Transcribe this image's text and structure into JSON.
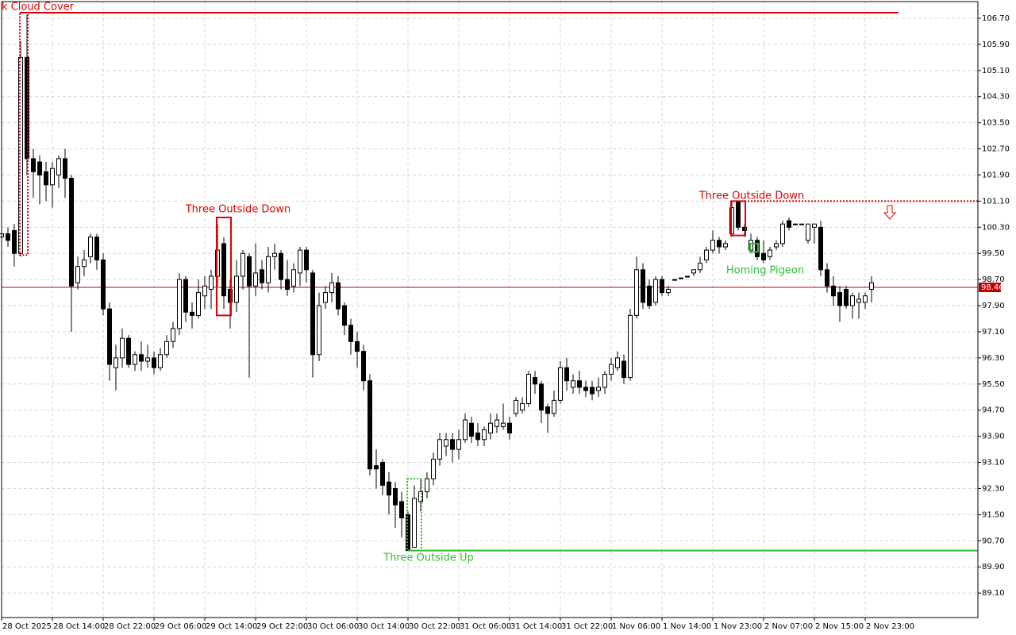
{
  "chart_data": {
    "type": "candlestick",
    "categories": [
      "28 Oct 2025",
      null,
      null,
      null,
      null,
      null,
      null,
      null,
      "28 Oct 14:00",
      null,
      null,
      null,
      null,
      null,
      null,
      null,
      "28 Oct 22:00",
      null,
      null,
      null,
      null,
      null,
      null,
      null,
      "29 Oct 06:00",
      null,
      null,
      null,
      null,
      null,
      null,
      null,
      "29 Oct 14:00",
      null,
      null,
      null,
      null,
      null,
      null,
      null,
      "29 Oct 22:00",
      null,
      null,
      null,
      null,
      null,
      null,
      null,
      "30 Oct 06:00",
      null,
      null,
      null,
      null,
      null,
      null,
      null,
      "30 Oct 14:00",
      null,
      null,
      null,
      null,
      null,
      null,
      null,
      "30 Oct 22:00",
      null,
      null,
      null,
      null,
      null,
      null,
      null,
      "31 Oct 06:00",
      null,
      null,
      null,
      null,
      null,
      null,
      null,
      "31 Oct 14:00",
      null,
      null,
      null,
      null,
      null,
      null,
      null,
      "31 Oct 22:00",
      null,
      null,
      null,
      null,
      null,
      null,
      null,
      "1 Nov 06:00",
      null,
      null,
      null,
      null,
      null,
      null,
      null,
      "1 Nov 14:00",
      null,
      null,
      null,
      null,
      null,
      null,
      null,
      "1 Nov 23:00",
      null,
      null,
      null,
      null,
      null,
      null,
      null,
      "2 Nov 07:00",
      null,
      null,
      null,
      null,
      null,
      null,
      null,
      "2 Nov 15:00",
      null,
      null,
      null,
      null,
      null,
      null,
      null,
      "2 Nov 23:00",
      null
    ],
    "open": [
      100.0,
      100.1,
      100.2,
      99.5,
      105.5,
      102.4,
      102.3,
      102.0,
      101.6,
      101.9,
      102.4,
      101.8,
      98.6,
      99.1,
      99.4,
      100.0,
      99.3,
      97.8,
      96.0,
      96.3,
      96.9,
      96.1,
      96.4,
      96.2,
      96.3,
      96.0,
      96.4,
      96.8,
      97.2,
      98.7,
      97.7,
      97.6,
      98.2,
      98.4,
      98.8,
      99.8,
      98.4,
      98.0,
      98.8,
      99.4,
      98.5,
      99.0,
      98.6,
      99.4,
      99.5,
      98.7,
      98.5,
      98.9,
      99.6,
      98.9,
      96.4,
      98.0,
      98.3,
      98.6,
      97.9,
      97.3,
      96.8,
      96.5,
      95.6,
      93.0,
      93.1,
      92.5,
      92.3,
      91.9,
      91.5,
      90.5,
      91.9,
      92.2,
      92.6,
      93.2,
      93.6,
      93.8,
      93.5,
      93.8,
      94.3,
      94.0,
      93.8,
      94.0,
      94.2,
      94.2,
      94.3,
      94.6,
      94.7,
      94.9,
      95.7,
      95.5,
      94.8,
      94.6,
      95.0,
      96.0,
      95.4,
      95.6,
      95.4,
      95.4,
      95.3,
      95.4,
      95.8,
      96.0,
      96.2,
      95.7,
      97.6,
      99.0,
      98.5,
      98.0,
      98.7,
      98.3,
      98.7,
      98.75,
      98.8,
      98.9,
      99.0,
      99.3,
      99.6,
      99.9,
      99.7,
      100.1,
      101.1,
      100.3,
      99.6,
      99.9,
      99.5,
      99.4,
      99.7,
      99.8,
      100.5,
      100.4,
      100.4,
      99.9,
      100.3,
      100.3,
      99.0,
      98.5,
      98.3,
      98.4,
      97.9,
      98.0,
      98.0,
      98.4
    ],
    "high": [
      100.3,
      100.3,
      100.4,
      106.0,
      106.8,
      102.7,
      102.5,
      102.3,
      102.3,
      102.5,
      102.7,
      101.9,
      99.4,
      99.6,
      100.1,
      100.1,
      99.5,
      98.0,
      96.7,
      97.2,
      97.0,
      96.5,
      96.8,
      96.7,
      96.5,
      96.6,
      97.0,
      97.4,
      98.9,
      98.8,
      98.0,
      98.7,
      98.8,
      99.0,
      100.4,
      100.0,
      98.7,
      99.3,
      99.6,
      99.5,
      99.8,
      99.3,
      99.7,
      99.8,
      99.6,
      99.3,
      99.2,
      99.7,
      99.7,
      99.0,
      98.3,
      98.5,
      98.9,
      98.8,
      98.0,
      97.5,
      97.1,
      96.7,
      95.8,
      93.5,
      93.2,
      92.8,
      92.5,
      92.2,
      91.6,
      92.4,
      92.6,
      92.8,
      93.4,
      94.0,
      94.0,
      94.0,
      94.1,
      94.6,
      94.5,
      94.3,
      94.2,
      94.6,
      94.6,
      94.9,
      94.5,
      95.1,
      95.1,
      95.9,
      95.9,
      95.6,
      94.9,
      95.3,
      96.2,
      96.3,
      95.8,
      95.9,
      95.6,
      95.6,
      95.7,
      95.9,
      96.3,
      96.5,
      96.4,
      97.8,
      99.4,
      99.2,
      98.7,
      98.8,
      98.8,
      98.5,
      98.7,
      98.75,
      98.8,
      99.0,
      99.4,
      99.7,
      100.2,
      100.0,
      99.9,
      101.1,
      101.1,
      100.4,
      100.1,
      100.0,
      99.9,
      99.7,
      99.9,
      100.5,
      100.6,
      100.4,
      100.4,
      100.4,
      100.4,
      100.5,
      99.2,
      98.8,
      98.5,
      98.5,
      98.3,
      98.3,
      98.3,
      98.8
    ],
    "low": [
      99.8,
      99.7,
      99.1,
      99.4,
      101.9,
      101.2,
      101.0,
      101.1,
      100.9,
      101.5,
      101.2,
      97.1,
      98.4,
      98.8,
      99.2,
      99.0,
      97.6,
      95.6,
      95.3,
      96.0,
      96.0,
      95.9,
      95.9,
      96.0,
      95.8,
      95.9,
      96.3,
      96.6,
      97.0,
      97.4,
      97.2,
      97.5,
      97.8,
      97.8,
      98.5,
      97.8,
      97.2,
      97.7,
      98.4,
      95.7,
      98.2,
      98.4,
      98.3,
      99.0,
      98.4,
      98.2,
      98.3,
      98.5,
      98.6,
      95.7,
      96.2,
      97.8,
      98.0,
      97.6,
      97.0,
      96.4,
      96.0,
      95.3,
      92.7,
      92.3,
      92.1,
      91.5,
      91.1,
      90.8,
      90.4,
      90.5,
      91.6,
      92.0,
      92.4,
      93.0,
      93.3,
      93.1,
      93.2,
      93.7,
      93.7,
      93.6,
      93.6,
      93.8,
      94.0,
      94.1,
      93.8,
      94.5,
      94.6,
      94.8,
      95.2,
      94.3,
      94.0,
      94.5,
      94.9,
      95.3,
      95.2,
      95.2,
      95.1,
      95.0,
      95.1,
      95.2,
      95.6,
      95.9,
      95.5,
      95.6,
      97.5,
      97.8,
      97.8,
      97.9,
      98.2,
      98.2,
      98.7,
      98.75,
      98.8,
      98.8,
      98.9,
      99.2,
      99.5,
      99.5,
      99.6,
      100.0,
      100.2,
      100.0,
      99.5,
      99.3,
      99.2,
      99.3,
      99.6,
      99.7,
      100.2,
      100.4,
      100.4,
      99.8,
      99.8,
      98.8,
      98.3,
      97.9,
      97.4,
      97.8,
      97.5,
      97.5,
      97.8,
      98.0
    ],
    "close": [
      100.1,
      99.9,
      99.5,
      105.5,
      102.4,
      102.0,
      101.9,
      101.6,
      102.1,
      102.4,
      101.8,
      98.5,
      99.1,
      99.3,
      100.0,
      99.3,
      97.8,
      96.1,
      96.3,
      96.9,
      96.1,
      96.4,
      96.2,
      96.3,
      96.0,
      96.4,
      96.8,
      97.2,
      98.7,
      97.7,
      97.6,
      98.3,
      98.5,
      98.8,
      99.6,
      98.2,
      98.0,
      98.8,
      99.5,
      98.5,
      98.9,
      98.6,
      99.4,
      99.5,
      98.7,
      98.4,
      99.0,
      99.6,
      99.0,
      96.4,
      97.9,
      98.3,
      98.6,
      97.8,
      97.3,
      96.8,
      96.5,
      95.6,
      92.9,
      92.9,
      92.4,
      92.1,
      91.8,
      91.4,
      90.4,
      92.0,
      92.2,
      92.6,
      93.2,
      93.8,
      93.8,
      93.5,
      93.8,
      94.4,
      93.9,
      93.8,
      94.1,
      94.3,
      94.4,
      94.3,
      94.0,
      95.0,
      94.9,
      95.8,
      95.5,
      94.7,
      94.6,
      95.0,
      96.0,
      95.6,
      95.6,
      95.4,
      95.3,
      95.2,
      95.4,
      95.8,
      96.1,
      96.3,
      95.7,
      97.6,
      99.0,
      98.0,
      97.9,
      98.7,
      98.3,
      98.4,
      98.7,
      98.75,
      98.8,
      99.0,
      99.2,
      99.6,
      99.9,
      99.7,
      99.8,
      100.9,
      100.3,
      100.2,
      99.9,
      99.4,
      99.3,
      99.6,
      99.8,
      100.4,
      100.3,
      100.4,
      100.4,
      100.4,
      100.4,
      99.0,
      98.5,
      98.2,
      97.9,
      97.9,
      98.2,
      98.1,
      98.2,
      98.6
    ],
    "up_color": "#ffffff",
    "down_color": "#000000",
    "ylim": [
      88.35,
      107.21
    ],
    "yticks": [
      {
        "value": 89.1,
        "label": "89.10"
      },
      {
        "value": 89.9,
        "label": "89.90"
      },
      {
        "value": 90.7,
        "label": "90.70"
      },
      {
        "value": 91.5,
        "label": "91.50"
      },
      {
        "value": 92.3,
        "label": "92.30"
      },
      {
        "value": 93.1,
        "label": "93.10"
      },
      {
        "value": 93.9,
        "label": "93.90"
      },
      {
        "value": 94.7,
        "label": "94.70"
      },
      {
        "value": 95.5,
        "label": "95.50"
      },
      {
        "value": 96.3,
        "label": "96.30"
      },
      {
        "value": 97.1,
        "label": "97.10"
      },
      {
        "value": 97.9,
        "label": "97.90"
      },
      {
        "value": 98.7,
        "label": "98.70"
      },
      {
        "value": 99.5,
        "label": "99.50"
      },
      {
        "value": 100.3,
        "label": "100.30"
      },
      {
        "value": 101.1,
        "label": "101.10"
      },
      {
        "value": 101.9,
        "label": "101.90"
      },
      {
        "value": 102.7,
        "label": "102.70"
      },
      {
        "value": 103.5,
        "label": "103.50"
      },
      {
        "value": 104.3,
        "label": "104.30"
      },
      {
        "value": 105.1,
        "label": "105.10"
      },
      {
        "value": 105.9,
        "label": "105.90"
      },
      {
        "value": 106.7,
        "label": "106.70"
      }
    ],
    "grid": true,
    "current_price": 98.46,
    "current_price_color": "#c00000",
    "patterns": [
      {
        "label": "k Cloud Cover",
        "color": "#e00000",
        "high": 106.87,
        "low": 99.45
      },
      {
        "label": "Three Outside Down",
        "color": "#e00000",
        "high": 100.6,
        "low": 97.6
      },
      {
        "label": "Three Outside Up",
        "color": "#33bb33",
        "high": 92.6,
        "low": 90.4
      },
      {
        "label": "Three Outside Down",
        "color": "#e00000",
        "high": 101.1,
        "low": 100.05
      },
      {
        "label": "Homing Pigeon",
        "color": "#33bb33",
        "high": 99.8,
        "low": 99.55
      }
    ]
  }
}
